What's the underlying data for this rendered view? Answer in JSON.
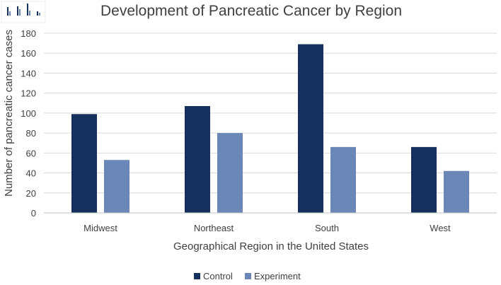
{
  "chart_data": {
    "type": "bar",
    "title": "Development of Pancreatic Cancer by Region",
    "xlabel": "Geographical Region in the United States",
    "ylabel": "Number of pancreatic cancer cases",
    "categories": [
      "Midwest",
      "Northeast",
      "South",
      "West"
    ],
    "series": [
      {
        "name": "Control",
        "color": "#16305e",
        "values": [
          99,
          107,
          169,
          66
        ]
      },
      {
        "name": "Experiment",
        "color": "#6a87b8",
        "values": [
          53,
          80,
          66,
          42
        ]
      }
    ],
    "ylim": [
      0,
      180
    ],
    "yticks": [
      0,
      20,
      40,
      60,
      80,
      100,
      120,
      140,
      160,
      180
    ],
    "grid": true,
    "legend": "bottom"
  },
  "colors": {
    "gridline": "#d9d9d9",
    "text": "#404040",
    "thumbnail": "#bbbbbb"
  }
}
